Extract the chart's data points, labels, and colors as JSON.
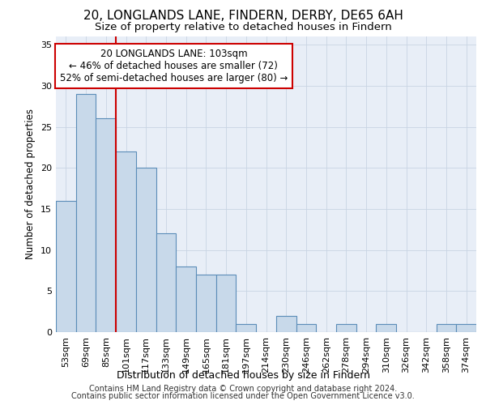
{
  "title1": "20, LONGLANDS LANE, FINDERN, DERBY, DE65 6AH",
  "title2": "Size of property relative to detached houses in Findern",
  "xlabel": "Distribution of detached houses by size in Findern",
  "ylabel": "Number of detached properties",
  "categories": [
    "53sqm",
    "69sqm",
    "85sqm",
    "101sqm",
    "117sqm",
    "133sqm",
    "149sqm",
    "165sqm",
    "181sqm",
    "197sqm",
    "214sqm",
    "230sqm",
    "246sqm",
    "262sqm",
    "278sqm",
    "294sqm",
    "310sqm",
    "326sqm",
    "342sqm",
    "358sqm",
    "374sqm"
  ],
  "values": [
    16,
    29,
    26,
    22,
    20,
    12,
    8,
    7,
    7,
    1,
    0,
    2,
    1,
    0,
    1,
    0,
    1,
    0,
    0,
    1,
    1
  ],
  "bar_color": "#c8d9ea",
  "bar_edge_color": "#5b8db8",
  "vline_x": 2.5,
  "vline_color": "#cc0000",
  "annotation_line1": "20 LONGLANDS LANE: 103sqm",
  "annotation_line2": "← 46% of detached houses are smaller (72)",
  "annotation_line3": "52% of semi-detached houses are larger (80) →",
  "ylim": [
    0,
    36
  ],
  "yticks": [
    0,
    5,
    10,
    15,
    20,
    25,
    30,
    35
  ],
  "grid_color": "#c8d4e3",
  "bg_color": "#e8eef7",
  "footer1": "Contains HM Land Registry data © Crown copyright and database right 2024.",
  "footer2": "Contains public sector information licensed under the Open Government Licence v3.0.",
  "title1_fontsize": 11,
  "title2_fontsize": 9.5,
  "xlabel_fontsize": 9,
  "ylabel_fontsize": 8.5,
  "tick_fontsize": 8,
  "annotation_fontsize": 8.5,
  "footer_fontsize": 7
}
